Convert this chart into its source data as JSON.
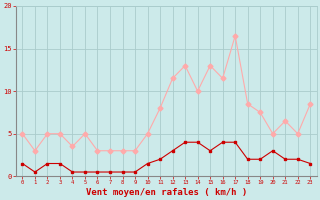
{
  "x": [
    0,
    1,
    2,
    3,
    4,
    5,
    6,
    7,
    8,
    9,
    10,
    11,
    12,
    13,
    14,
    15,
    16,
    17,
    18,
    19,
    20,
    21,
    22,
    23
  ],
  "rafales": [
    5,
    3,
    5,
    5,
    3.5,
    5,
    3,
    3,
    3,
    3,
    5,
    8,
    11.5,
    13,
    10,
    13,
    11.5,
    16.5,
    8.5,
    7.5,
    5,
    6.5,
    5,
    8.5
  ],
  "moyen": [
    1.5,
    0.5,
    1.5,
    1.5,
    0.5,
    0.5,
    0.5,
    0.5,
    0.5,
    0.5,
    1.5,
    2,
    3,
    4,
    4,
    3,
    4,
    4,
    2,
    2,
    3,
    2,
    2,
    1.5
  ],
  "color_rafales": "#ffaaaa",
  "color_moyen": "#cc0000",
  "bg_color": "#cceaea",
  "grid_color": "#aacccc",
  "xlabel": "Vent moyen/en rafales ( km/h )",
  "xlabel_color": "#cc0000",
  "tick_color": "#cc0000",
  "spine_color": "#888888",
  "ylim": [
    0,
    20
  ],
  "yticks": [
    0,
    5,
    10,
    15,
    20
  ],
  "marker_size_rafales": 2.5,
  "marker_size_moyen": 2.0,
  "linewidth": 0.8
}
